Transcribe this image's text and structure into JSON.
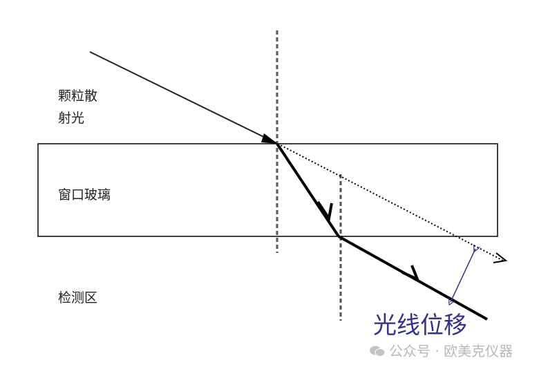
{
  "labels": {
    "scattered_light_line1": "颗粒散",
    "scattered_light_line2": "射光",
    "window_glass": "窗口玻璃",
    "detection_zone": "检测区",
    "light_shift": "光线位移"
  },
  "watermark": {
    "text": "公众号 · 欧美克仪器",
    "icon": "wechat-icon"
  },
  "colors": {
    "lines": "#000000",
    "shift_annotation": "#33338a",
    "watermark": "#b8b8b8"
  }
}
